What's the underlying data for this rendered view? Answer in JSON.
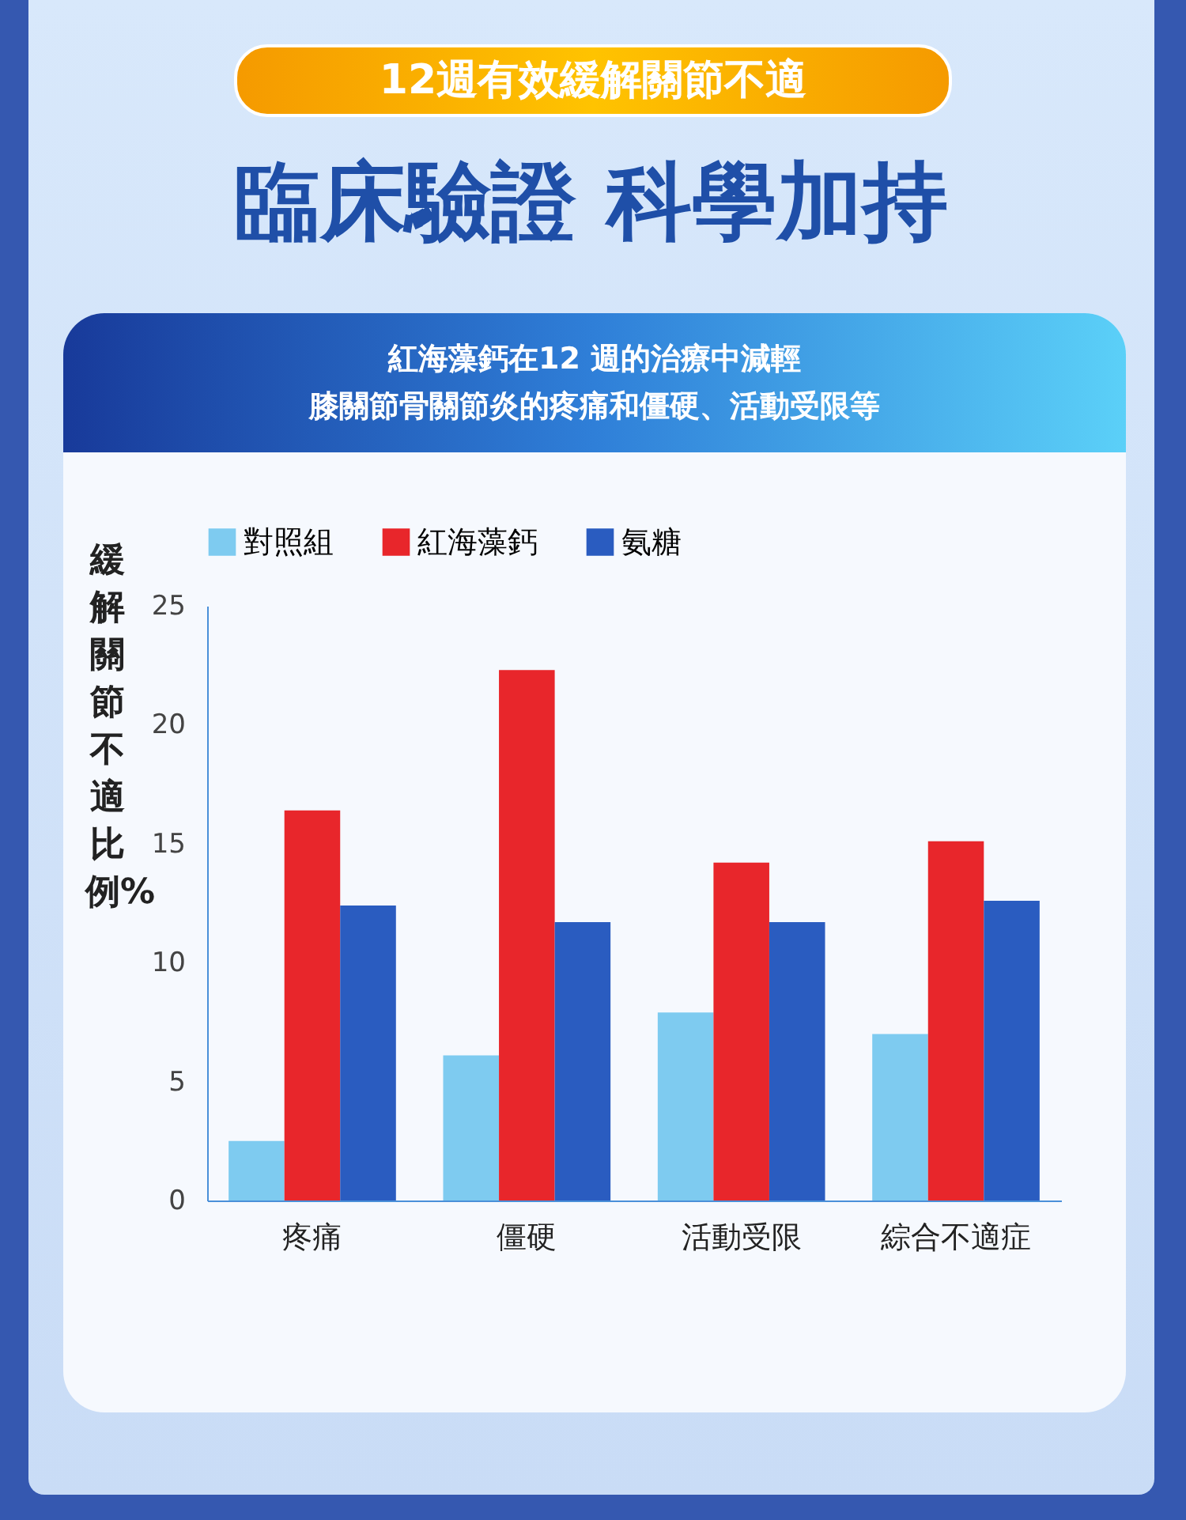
{
  "chart_data": {
    "type": "bar",
    "title": "12週有效緩解關節不適",
    "subtitle": "臨床驗證 科學加持",
    "annotations": [
      "紅海藻鈣在12 週的治療中減輕",
      "膝關節骨關節炎的疼痛和僵硬、活動受限等"
    ],
    "ylabel": "緩解關節不適比例%",
    "categories": [
      "疼痛",
      "僵硬",
      "活動受限",
      "綜合不適症"
    ],
    "series": [
      {
        "name": "對照組",
        "color": "#7ecbf0",
        "values": [
          2.5,
          6.1,
          7.9,
          7.0
        ]
      },
      {
        "name": "紅海藻鈣",
        "color": "#e8262b",
        "values": [
          16.4,
          22.3,
          14.2,
          15.1
        ]
      },
      {
        "name": "氨糖",
        "color": "#2a5cc0",
        "values": [
          12.4,
          11.7,
          11.7,
          12.6
        ]
      }
    ],
    "ylim": [
      0,
      25
    ],
    "yticks": [
      0,
      5,
      10,
      15,
      20,
      25
    ],
    "grid": false,
    "legend": "top"
  }
}
